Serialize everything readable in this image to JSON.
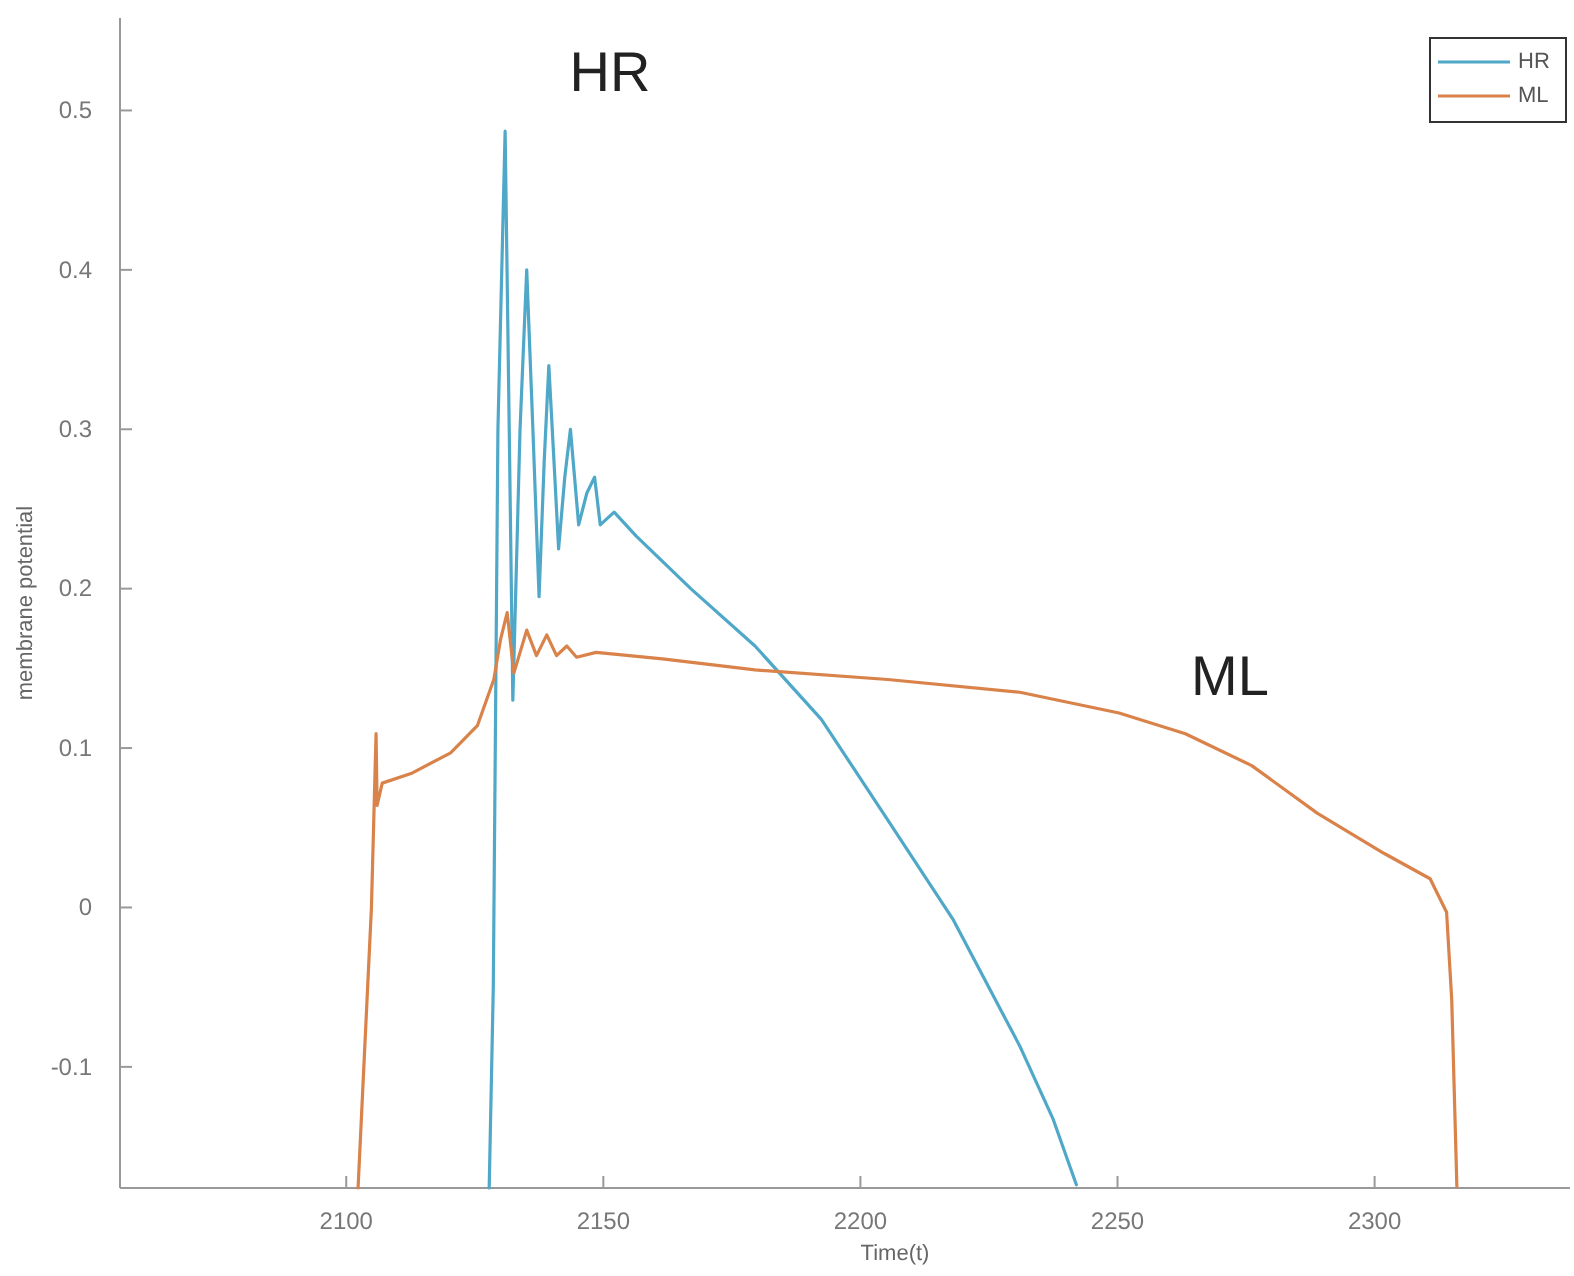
{
  "chart_data": {
    "type": "line",
    "xlabel": "Time(t)",
    "ylabel": "membrane potential",
    "xlim": [
      2056,
      2338
    ],
    "ylim": [
      -0.176,
      0.558
    ],
    "xticks": [
      2100,
      2150,
      2200,
      2250,
      2300
    ],
    "yticks": [
      {
        "value": -0.1,
        "label": "-0.1"
      },
      0,
      0.1,
      0.2,
      0.3,
      0.4,
      0.5
    ],
    "grid": false,
    "legend": "top right",
    "line_style": "solid",
    "marker": "none",
    "annotations": [
      "HR",
      "ML"
    ],
    "series": [
      {
        "name": "HR",
        "color": "#4fa8c8",
        "x": [
          2127.8,
          2128.6,
          2129.5,
          2130.9,
          2131.7,
          2132.4,
          2133.8,
          2135.1,
          2136.3,
          2137.5,
          2138.5,
          2139.4,
          2140.4,
          2141.3,
          2142.5,
          2143.6,
          2144.4,
          2145.2,
          2146.8,
          2148.3,
          2149.4,
          2152.1,
          2156.4,
          2167,
          2179.5,
          2192.4,
          2205.3,
          2218.1,
          2231,
          2237.5,
          2242
        ],
        "values": [
          -0.176,
          -0.05,
          0.3,
          0.487,
          0.3,
          0.13,
          0.3,
          0.4,
          0.3,
          0.195,
          0.28,
          0.34,
          0.28,
          0.225,
          0.27,
          0.3,
          0.27,
          0.24,
          0.26,
          0.27,
          0.24,
          0.248,
          0.233,
          0.2,
          0.164,
          0.118,
          0.055,
          -0.008,
          -0.087,
          -0.133,
          -0.174
        ]
      },
      {
        "name": "ML",
        "color": "#d9824a",
        "x": [
          2102.3,
          2104.9,
          2105.8,
          2106,
          2107,
          2112.6,
          2120.3,
          2125.5,
          2128.7,
          2130,
          2131.3,
          2132.6,
          2135.1,
          2137,
          2139,
          2140.9,
          2142.9,
          2144.8,
          2148.6,
          2161.5,
          2179.5,
          2205.3,
          2231,
          2250.3,
          2263.2,
          2276.1,
          2288.9,
          2301.8,
          2310.8,
          2314,
          2315,
          2316
        ],
        "values": [
          -0.176,
          0,
          0.109,
          0.064,
          0.078,
          0.084,
          0.097,
          0.114,
          0.143,
          0.168,
          0.185,
          0.147,
          0.174,
          0.158,
          0.171,
          0.158,
          0.164,
          0.157,
          0.16,
          0.156,
          0.149,
          0.143,
          0.135,
          0.122,
          0.109,
          0.089,
          0.059,
          0.034,
          0.018,
          -0.003,
          -0.058,
          -0.175
        ]
      }
    ]
  }
}
